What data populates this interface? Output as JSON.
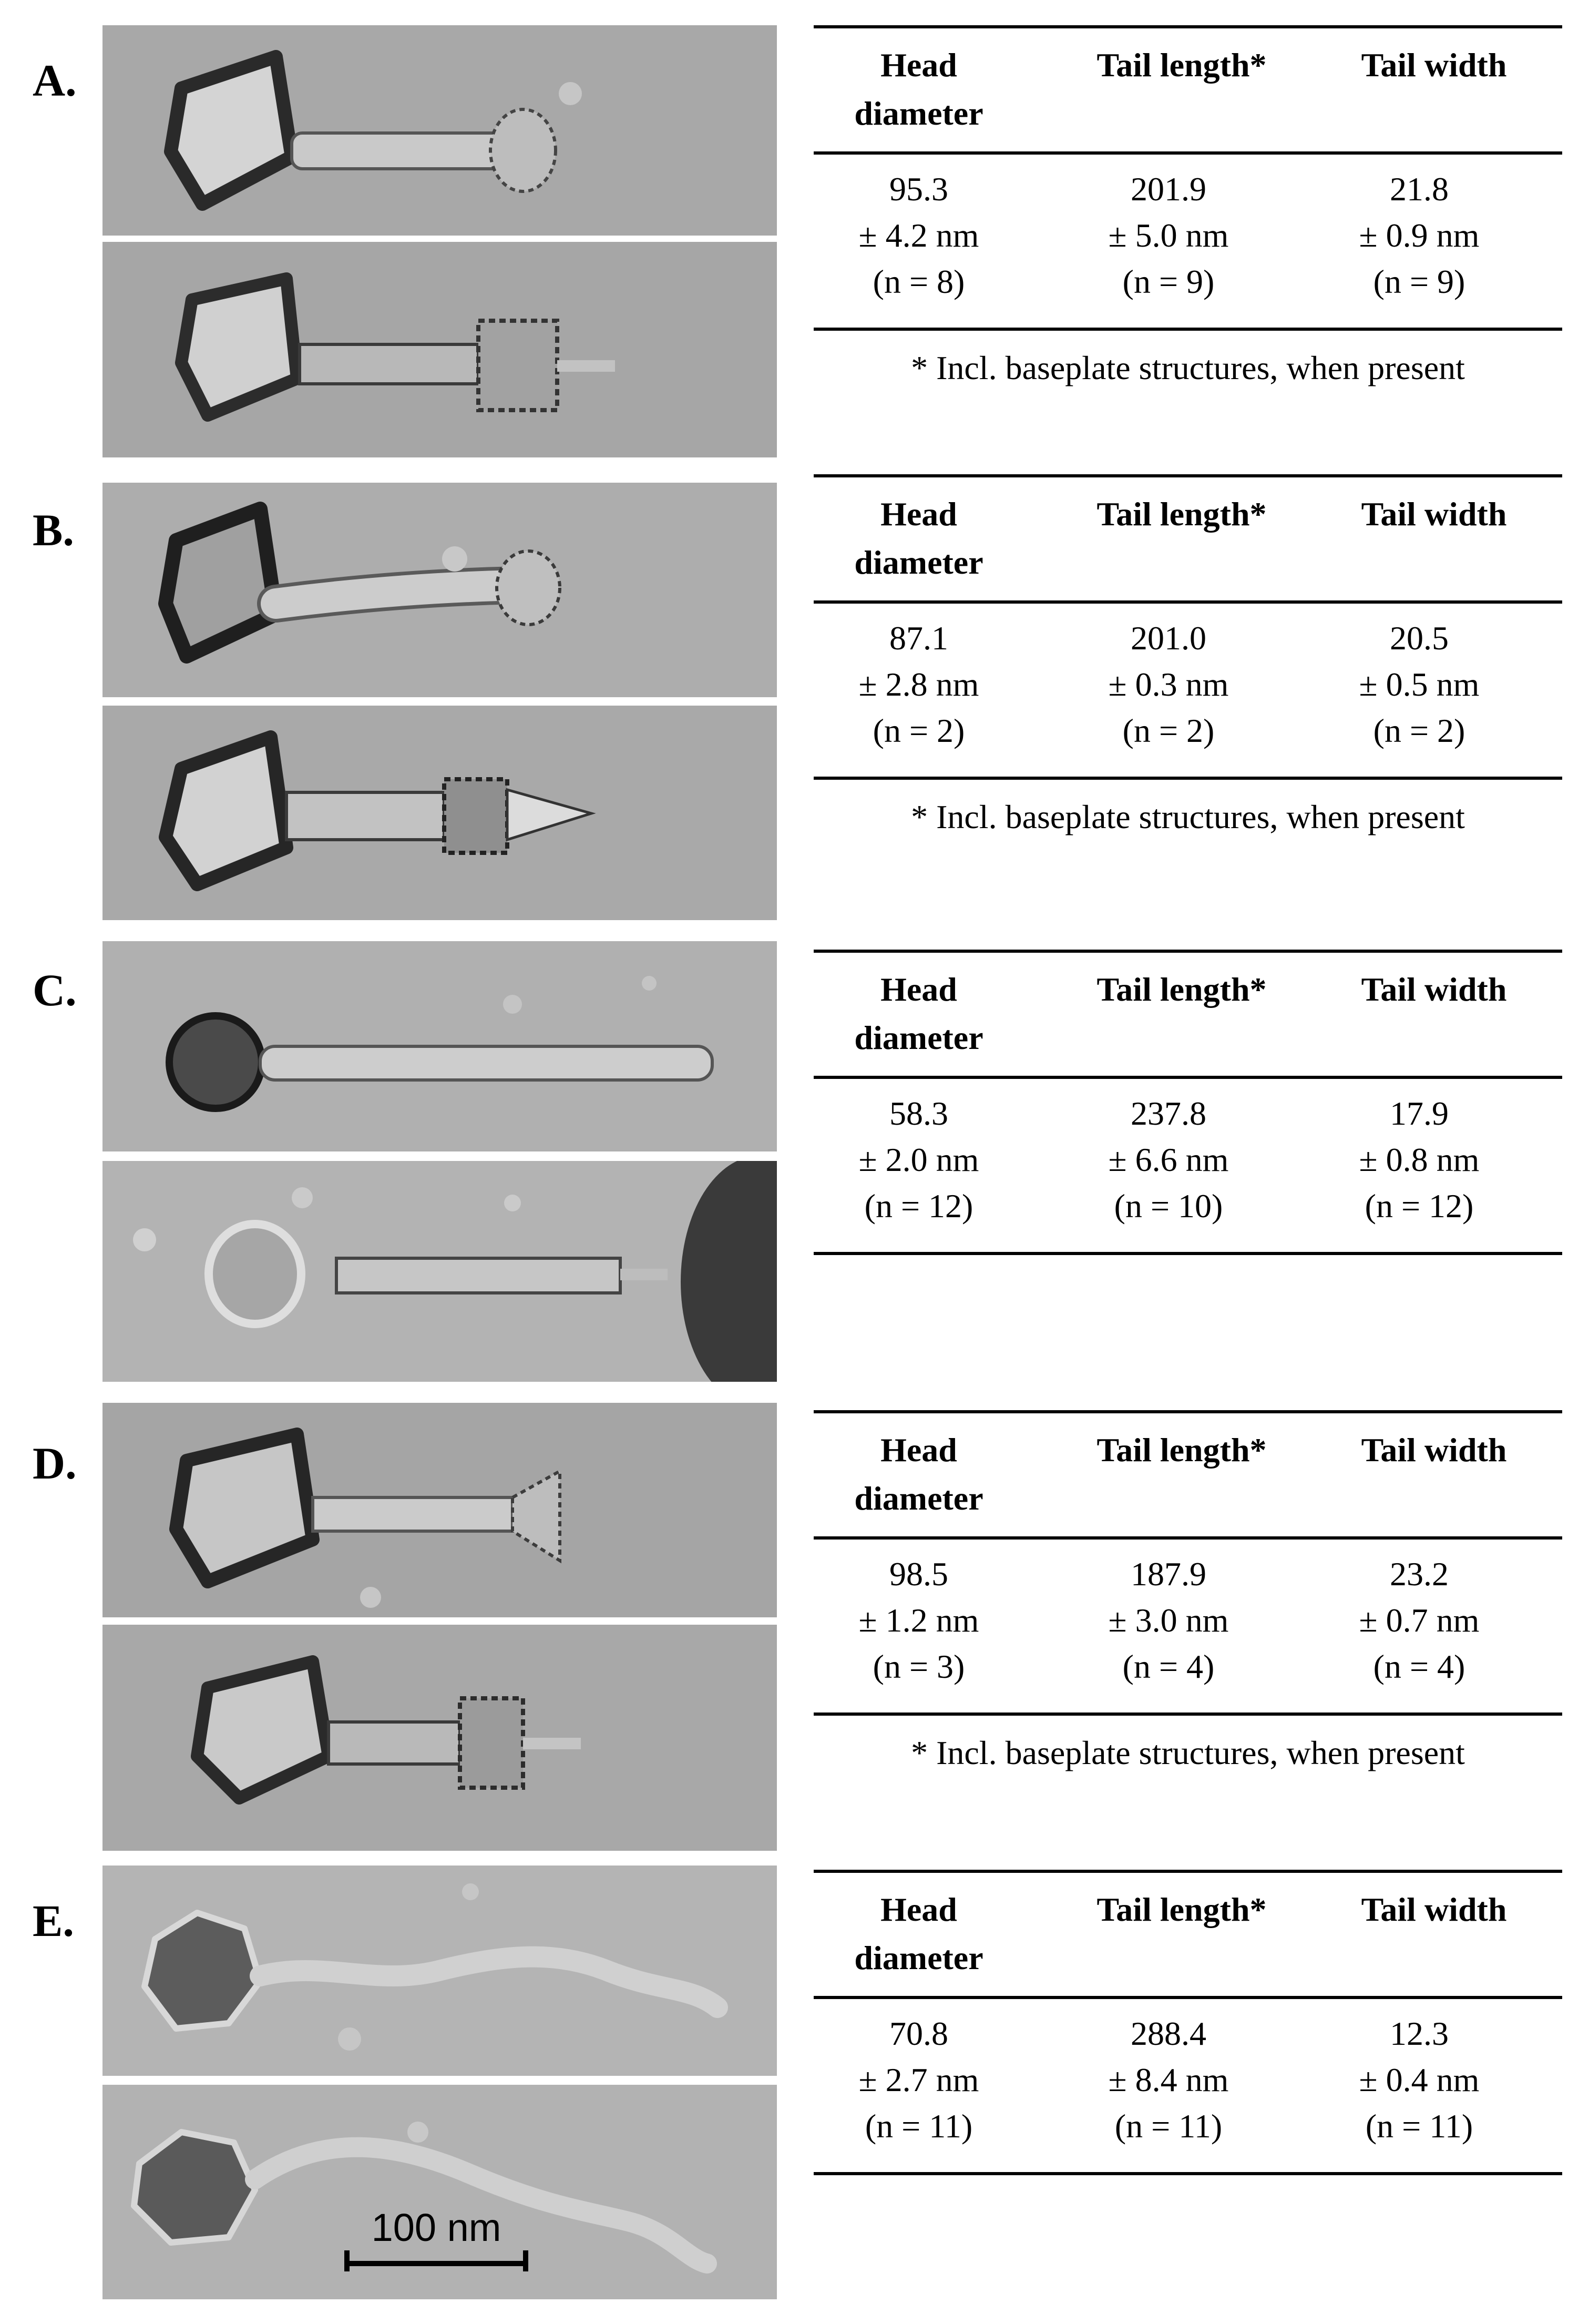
{
  "headers": {
    "head_diameter": "Head diameter",
    "tail_length": "Tail length*",
    "tail_width": "Tail width"
  },
  "footnote": "* Incl. baseplate structures, when present",
  "scale_bar": {
    "label": "100 nm"
  },
  "panels": [
    {
      "label": "A.",
      "head_diameter": {
        "value": "95.3",
        "sd": "± 4.2 nm",
        "n": "(n = 8)"
      },
      "tail_length": {
        "value": "201.9",
        "sd": "± 5.0 nm",
        "n": "(n = 9)"
      },
      "tail_width": {
        "value": "21.8",
        "sd": "± 0.9 nm",
        "n": "(n = 9)"
      },
      "has_footnote": true
    },
    {
      "label": "B.",
      "head_diameter": {
        "value": "87.1",
        "sd": "± 2.8 nm",
        "n": "(n = 2)"
      },
      "tail_length": {
        "value": "201.0",
        "sd": "± 0.3 nm",
        "n": "(n = 2)"
      },
      "tail_width": {
        "value": "20.5",
        "sd": "± 0.5 nm",
        "n": "(n = 2)"
      },
      "has_footnote": true
    },
    {
      "label": "C.",
      "head_diameter": {
        "value": "58.3",
        "sd": "± 2.0 nm",
        "n": "(n = 12)"
      },
      "tail_length": {
        "value": "237.8",
        "sd": "± 6.6 nm",
        "n": "(n = 10)"
      },
      "tail_width": {
        "value": "17.9",
        "sd": "± 0.8 nm",
        "n": "(n = 12)"
      },
      "has_footnote": false
    },
    {
      "label": "D.",
      "head_diameter": {
        "value": "98.5",
        "sd": "± 1.2 nm",
        "n": "(n = 3)"
      },
      "tail_length": {
        "value": "187.9",
        "sd": "± 3.0 nm",
        "n": "(n = 4)"
      },
      "tail_width": {
        "value": "23.2",
        "sd": "± 0.7 nm",
        "n": "(n = 4)"
      },
      "has_footnote": true
    },
    {
      "label": "E.",
      "head_diameter": {
        "value": "70.8",
        "sd": "± 2.7 nm",
        "n": "(n = 11)"
      },
      "tail_length": {
        "value": "288.4",
        "sd": "± 8.4 nm",
        "n": "(n = 11)"
      },
      "tail_width": {
        "value": "12.3",
        "sd": "± 0.4 nm",
        "n": "(n = 11)"
      },
      "has_footnote": false
    }
  ]
}
